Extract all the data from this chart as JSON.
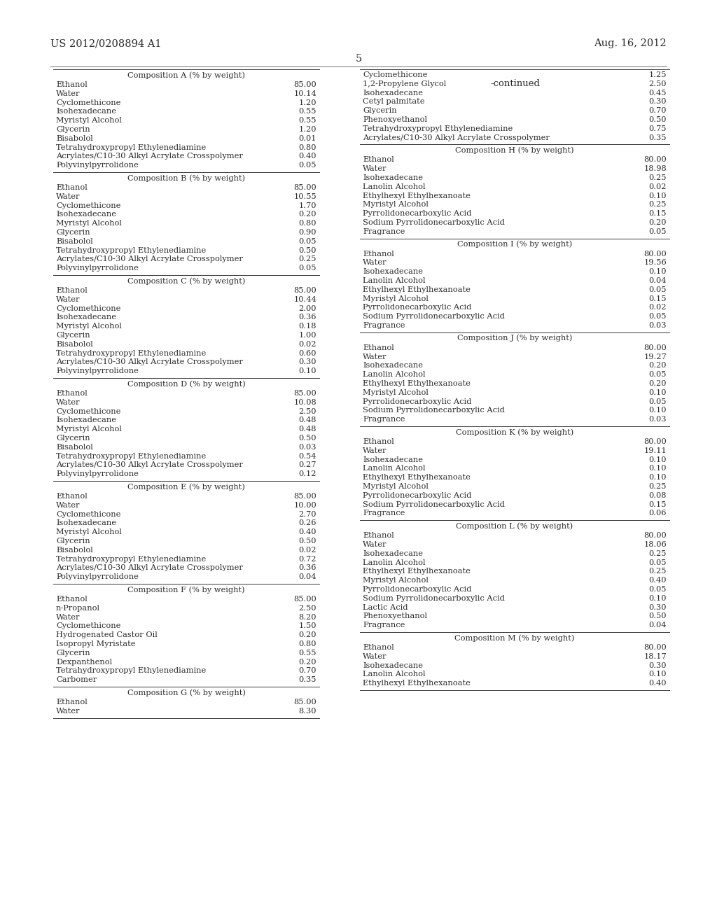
{
  "header_left": "US 2012/0208894 A1",
  "header_right": "Aug. 16, 2012",
  "page_number": "5",
  "continued_label": "-continued",
  "background_color": "#ffffff",
  "text_color": "#2a2a2a",
  "left_column": {
    "compositions": [
      {
        "title": "Composition A (% by weight)",
        "items": [
          [
            "Ethanol",
            "85.00"
          ],
          [
            "Water",
            "10.14"
          ],
          [
            "Cyclomethicone",
            "1.20"
          ],
          [
            "Isohexadecane",
            "0.55"
          ],
          [
            "Myristyl Alcohol",
            "0.55"
          ],
          [
            "Glycerin",
            "1.20"
          ],
          [
            "Bisabolol",
            "0.01"
          ],
          [
            "Tetrahydroxypropyl Ethylenediamine",
            "0.80"
          ],
          [
            "Acrylates/C10-30 Alkyl Acrylate Crosspolymer",
            "0.40"
          ],
          [
            "Polyvinylpyrrolidone",
            "0.05"
          ]
        ]
      },
      {
        "title": "Composition B (% by weight)",
        "items": [
          [
            "Ethanol",
            "85.00"
          ],
          [
            "Water",
            "10.55"
          ],
          [
            "Cyclomethicone",
            "1.70"
          ],
          [
            "Isohexadecane",
            "0.20"
          ],
          [
            "Myristyl Alcohol",
            "0.80"
          ],
          [
            "Glycerin",
            "0.90"
          ],
          [
            "Bisabolol",
            "0.05"
          ],
          [
            "Tetrahydroxypropyl Ethylenediamine",
            "0.50"
          ],
          [
            "Acrylates/C10-30 Alkyl Acrylate Crosspolymer",
            "0.25"
          ],
          [
            "Polyvinylpyrrolidone",
            "0.05"
          ]
        ]
      },
      {
        "title": "Composition C (% by weight)",
        "items": [
          [
            "Ethanol",
            "85.00"
          ],
          [
            "Water",
            "10.44"
          ],
          [
            "Cyclomethicone",
            "2.00"
          ],
          [
            "Isohexadecane",
            "0.36"
          ],
          [
            "Myristyl Alcohol",
            "0.18"
          ],
          [
            "Glycerin",
            "1.00"
          ],
          [
            "Bisabolol",
            "0.02"
          ],
          [
            "Tetrahydroxypropyl Ethylenediamine",
            "0.60"
          ],
          [
            "Acrylates/C10-30 Alkyl Acrylate Crosspolymer",
            "0.30"
          ],
          [
            "Polyvinylpyrrolidone",
            "0.10"
          ]
        ]
      },
      {
        "title": "Composition D (% by weight)",
        "items": [
          [
            "Ethanol",
            "85.00"
          ],
          [
            "Water",
            "10.08"
          ],
          [
            "Cyclomethicone",
            "2.50"
          ],
          [
            "Isohexadecane",
            "0.48"
          ],
          [
            "Myristyl Alcohol",
            "0.48"
          ],
          [
            "Glycerin",
            "0.50"
          ],
          [
            "Bisabolol",
            "0.03"
          ],
          [
            "Tetrahydroxypropyl Ethylenediamine",
            "0.54"
          ],
          [
            "Acrylates/C10-30 Alkyl Acrylate Crosspolymer",
            "0.27"
          ],
          [
            "Polyvinylpyrrolidone",
            "0.12"
          ]
        ]
      },
      {
        "title": "Composition E (% by weight)",
        "items": [
          [
            "Ethanol",
            "85.00"
          ],
          [
            "Water",
            "10.00"
          ],
          [
            "Cyclomethicone",
            "2.70"
          ],
          [
            "Isohexadecane",
            "0.26"
          ],
          [
            "Myristyl Alcohol",
            "0.40"
          ],
          [
            "Glycerin",
            "0.50"
          ],
          [
            "Bisabolol",
            "0.02"
          ],
          [
            "Tetrahydroxypropyl Ethylenediamine",
            "0.72"
          ],
          [
            "Acrylates/C10-30 Alkyl Acrylate Crosspolymer",
            "0.36"
          ],
          [
            "Polyvinylpyrrolidone",
            "0.04"
          ]
        ]
      },
      {
        "title": "Composition F (% by weight)",
        "items": [
          [
            "Ethanol",
            "85.00"
          ],
          [
            "n-Propanol",
            "2.50"
          ],
          [
            "Water",
            "8.20"
          ],
          [
            "Cyclomethicone",
            "1.50"
          ],
          [
            "Hydrogenated Castor Oil",
            "0.20"
          ],
          [
            "Isopropyl Myristate",
            "0.80"
          ],
          [
            "Glycerin",
            "0.55"
          ],
          [
            "Dexpanthenol",
            "0.20"
          ],
          [
            "Tetrahydroxypropyl Ethylenediamine",
            "0.70"
          ],
          [
            "Carbomer",
            "0.35"
          ]
        ]
      },
      {
        "title": "Composition G (% by weight)",
        "items": [
          [
            "Ethanol",
            "85.00"
          ],
          [
            "Water",
            "8.30"
          ]
        ]
      }
    ]
  },
  "right_column": {
    "compositions": [
      {
        "title": null,
        "items": [
          [
            "Cyclomethicone",
            "1.25"
          ],
          [
            "1,2-Propylene Glycol",
            "2.50"
          ],
          [
            "Isohexadecane",
            "0.45"
          ],
          [
            "Cetyl palmitate",
            "0.30"
          ],
          [
            "Glycerin",
            "0.70"
          ],
          [
            "Phenoxyethanol",
            "0.50"
          ],
          [
            "Tetrahydroxypropyl Ethylenediamine",
            "0.75"
          ],
          [
            "Acrylates/C10-30 Alkyl Acrylate Crosspolymer",
            "0.35"
          ]
        ]
      },
      {
        "title": "Composition H (% by weight)",
        "items": [
          [
            "Ethanol",
            "80.00"
          ],
          [
            "Water",
            "18.98"
          ],
          [
            "Isohexadecane",
            "0.25"
          ],
          [
            "Lanolin Alcohol",
            "0.02"
          ],
          [
            "Ethylhexyl Ethylhexanoate",
            "0.10"
          ],
          [
            "Myristyl Alcohol",
            "0.25"
          ],
          [
            "Pyrrolidonecarboxylic Acid",
            "0.15"
          ],
          [
            "Sodium Pyrrolidonecarboxylic Acid",
            "0.20"
          ],
          [
            "Fragrance",
            "0.05"
          ]
        ]
      },
      {
        "title": "Composition I (% by weight)",
        "items": [
          [
            "Ethanol",
            "80.00"
          ],
          [
            "Water",
            "19.56"
          ],
          [
            "Isohexadecane",
            "0.10"
          ],
          [
            "Lanolin Alcohol",
            "0.04"
          ],
          [
            "Ethylhexyl Ethylhexanoate",
            "0.05"
          ],
          [
            "Myristyl Alcohol",
            "0.15"
          ],
          [
            "Pyrrolidonecarboxylic Acid",
            "0.02"
          ],
          [
            "Sodium Pyrrolidonecarboxylic Acid",
            "0.05"
          ],
          [
            "Fragrance",
            "0.03"
          ]
        ]
      },
      {
        "title": "Composition J (% by weight)",
        "items": [
          [
            "Ethanol",
            "80.00"
          ],
          [
            "Water",
            "19.27"
          ],
          [
            "Isohexadecane",
            "0.20"
          ],
          [
            "Lanolin Alcohol",
            "0.05"
          ],
          [
            "Ethylhexyl Ethylhexanoate",
            "0.20"
          ],
          [
            "Myristyl Alcohol",
            "0.10"
          ],
          [
            "Pyrrolidonecarboxylic Acid",
            "0.05"
          ],
          [
            "Sodium Pyrrolidonecarboxylic Acid",
            "0.10"
          ],
          [
            "Fragrance",
            "0.03"
          ]
        ]
      },
      {
        "title": "Composition K (% by weight)",
        "items": [
          [
            "Ethanol",
            "80.00"
          ],
          [
            "Water",
            "19.11"
          ],
          [
            "Isohexadecane",
            "0.10"
          ],
          [
            "Lanolin Alcohol",
            "0.10"
          ],
          [
            "Ethylhexyl Ethylhexanoate",
            "0.10"
          ],
          [
            "Myristyl Alcohol",
            "0.25"
          ],
          [
            "Pyrrolidonecarboxylic Acid",
            "0.08"
          ],
          [
            "Sodium Pyrrolidonecarboxylic Acid",
            "0.15"
          ],
          [
            "Fragrance",
            "0.06"
          ]
        ]
      },
      {
        "title": "Composition L (% by weight)",
        "items": [
          [
            "Ethanol",
            "80.00"
          ],
          [
            "Water",
            "18.06"
          ],
          [
            "Isohexadecane",
            "0.25"
          ],
          [
            "Lanolin Alcohol",
            "0.05"
          ],
          [
            "Ethylhexyl Ethylhexanoate",
            "0.25"
          ],
          [
            "Myristyl Alcohol",
            "0.40"
          ],
          [
            "Pyrrolidonecarboxylic Acid",
            "0.05"
          ],
          [
            "Sodium Pyrrolidonecarboxylic Acid",
            "0.10"
          ],
          [
            "Lactic Acid",
            "0.30"
          ],
          [
            "Phenoxyethanol",
            "0.50"
          ],
          [
            "Fragrance",
            "0.04"
          ]
        ]
      },
      {
        "title": "Composition M (% by weight)",
        "items": [
          [
            "Ethanol",
            "80.00"
          ],
          [
            "Water",
            "18.17"
          ],
          [
            "Isohexadecane",
            "0.30"
          ],
          [
            "Lanolin Alcohol",
            "0.10"
          ],
          [
            "Ethylhexyl Ethylhexanoate",
            "0.40"
          ]
        ]
      }
    ]
  }
}
